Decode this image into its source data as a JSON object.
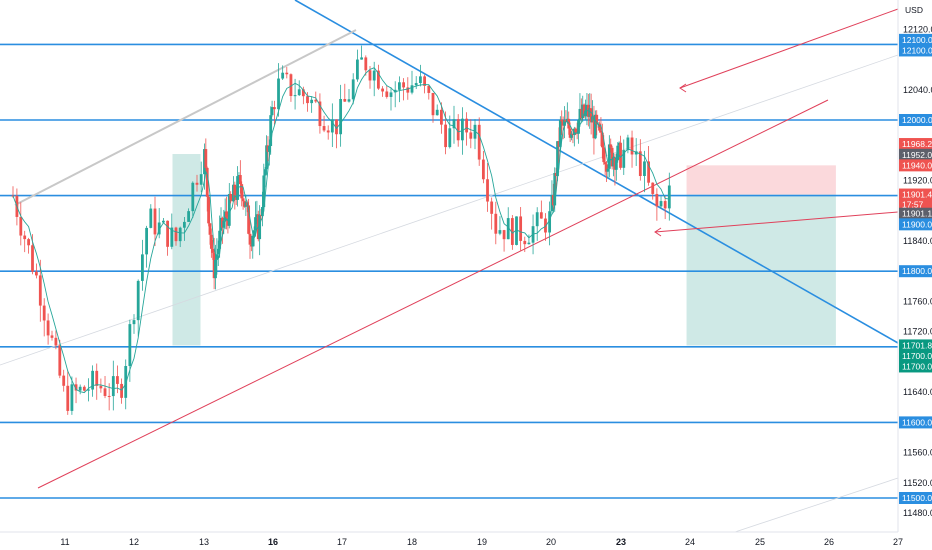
{
  "currency": "USD",
  "colors": {
    "level": "#2a8ee0",
    "trend": "#2a8ee0",
    "channel": "#e0405a",
    "grey": "#c8c8c8",
    "up": "#26a69a",
    "down": "#ef5350",
    "ma": "#26a69a",
    "tp_zone": "#cfe9e6",
    "sl_zone": "#fbd9dc",
    "tag_blue": "#2a8ee0",
    "tag_red": "#ef5350",
    "tag_green": "#089981",
    "tag_grey": "#5d606b"
  },
  "price_ticks": [
    "12120.0",
    "12040.0",
    "11920.0",
    "11840.0",
    "11760.0",
    "11720.0",
    "11640.0",
    "11560.0",
    "11520.0",
    "11480.0"
  ],
  "price_tags": [
    {
      "text": "12100.0",
      "price": 12106,
      "kind": "blue"
    },
    {
      "text": "12100.0",
      "price": 12092,
      "kind": "blue"
    },
    {
      "text": "12000.0",
      "price": 12000,
      "kind": "blue"
    },
    {
      "text": "11968.2",
      "price": 11968.2,
      "kind": "red"
    },
    {
      "text": "11952.0",
      "price": 11954,
      "kind": "grey"
    },
    {
      "text": "11940.0",
      "price": 11940,
      "kind": "red"
    },
    {
      "text": "11901.4",
      "price": 11901.4,
      "kind": "red"
    },
    {
      "text": "17:57",
      "price": 11888,
      "kind": "red"
    },
    {
      "text": "11901.1",
      "price": 11876,
      "kind": "grey"
    },
    {
      "text": "11900.0",
      "price": 11862,
      "kind": "blue"
    },
    {
      "text": "11800.0",
      "price": 11800,
      "kind": "blue"
    },
    {
      "text": "11701.8",
      "price": 11701.8,
      "kind": "green"
    },
    {
      "text": "11700.0",
      "price": 11688,
      "kind": "green"
    },
    {
      "text": "11700.0",
      "price": 11674,
      "kind": "green"
    },
    {
      "text": "11600.0",
      "price": 11600,
      "kind": "blue"
    },
    {
      "text": "11500.0",
      "price": 11500,
      "kind": "blue"
    }
  ],
  "date_ticks": [
    {
      "label": "11",
      "day": 11,
      "bold": false
    },
    {
      "label": "12",
      "day": 12,
      "bold": false
    },
    {
      "label": "13",
      "day": 13,
      "bold": false
    },
    {
      "label": "16",
      "day": 16,
      "bold": true
    },
    {
      "label": "17",
      "day": 17,
      "bold": false
    },
    {
      "label": "18",
      "day": 18,
      "bold": false
    },
    {
      "label": "19",
      "day": 19,
      "bold": false
    },
    {
      "label": "20",
      "day": 20,
      "bold": false
    },
    {
      "label": "23",
      "day": 23,
      "bold": true
    },
    {
      "label": "24",
      "day": 24,
      "bold": false
    },
    {
      "label": "25",
      "day": 25,
      "bold": false
    },
    {
      "label": "26",
      "day": 26,
      "bold": false
    },
    {
      "label": "27",
      "day": 27,
      "bold": false
    }
  ],
  "chart_data": {
    "type": "line",
    "series": [
      {
        "x": [
          10.2,
          10.6,
          11.0,
          11.4,
          11.8,
          12.2,
          12.6,
          13.0,
          13.4,
          13.8,
          14.2,
          14.6,
          15.0,
          15.4,
          15.8,
          16.1,
          16.5,
          16.9,
          17.3,
          17.7,
          18.1,
          18.5,
          18.9,
          19.2,
          19.6,
          20.0,
          20.4,
          20.8,
          21.2,
          21.6,
          22.0,
          22.4,
          22.7,
          22.9,
          23.1,
          23.3,
          23.5,
          23.7
        ],
        "y": [
          11900,
          11780,
          11630,
          11650,
          11640,
          11870,
          11840,
          11960,
          11800,
          11860,
          11890,
          11920,
          11850,
          11860,
          11970,
          12050,
          12030,
          11990,
          12080,
          12040,
          12050,
          11980,
          11990,
          11860,
          11850,
          11870,
          11990,
          11990,
          12000,
          12010,
          11980,
          11950,
          11955,
          11950,
          11960,
          11940,
          11880,
          11905
        ]
      }
    ],
    "levels": [
      12100,
      12000,
      11900,
      11800,
      11700,
      11600,
      11500
    ],
    "trades": [
      {
        "entry": 11901.4,
        "stop": 11940,
        "target": 11701.8
      },
      {
        "entry": 11800,
        "stop": 11968.2,
        "target": 11701.8
      }
    ],
    "ylim": [
      11460,
      12140
    ]
  }
}
